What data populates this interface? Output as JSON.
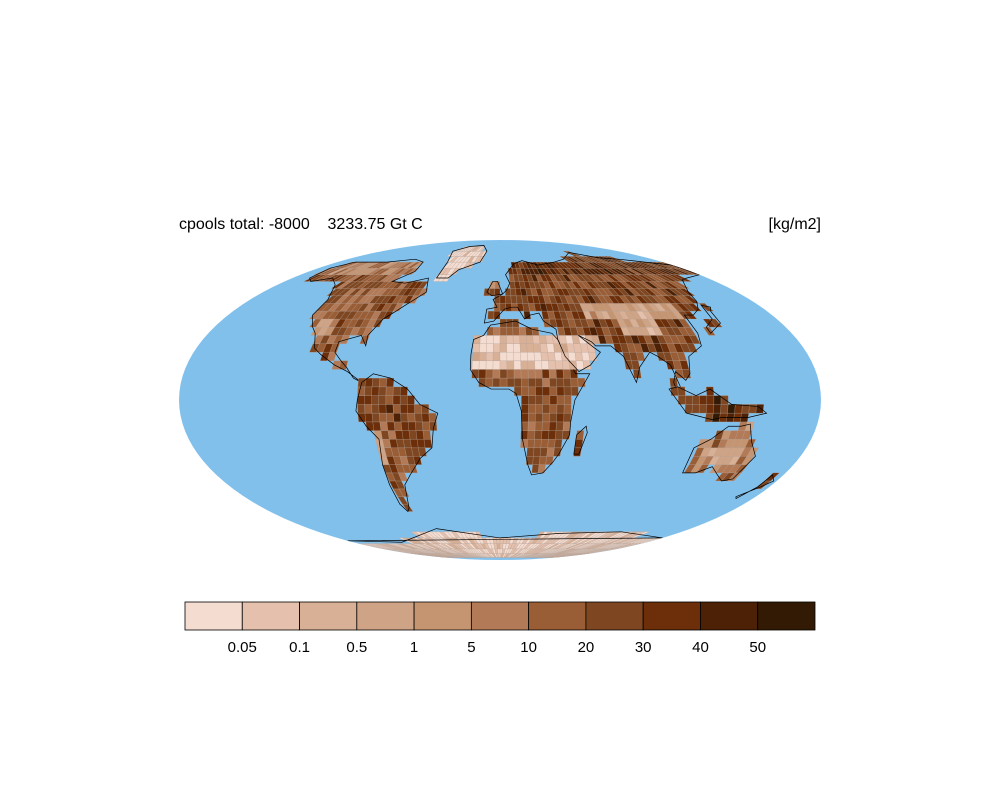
{
  "header": {
    "title": "cpools total: -8000    3233.75 Gt C",
    "units": "[kg/m2]"
  },
  "map": {
    "projection": "mollweide",
    "ocean_color": "#82c0ec",
    "coast_color": "#000000"
  },
  "legend": {
    "labels": [
      "0.05",
      "0.1",
      "0.5",
      "1",
      "5",
      "10",
      "20",
      "30",
      "40",
      "50"
    ],
    "colors": [
      "#f4dcd0",
      "#e4c0ad",
      "#d8b096",
      "#cfa385",
      "#c59571",
      "#b27a57",
      "#9a5e37",
      "#7e4721",
      "#6c2f0a",
      "#4d2105",
      "#321a04"
    ]
  }
}
